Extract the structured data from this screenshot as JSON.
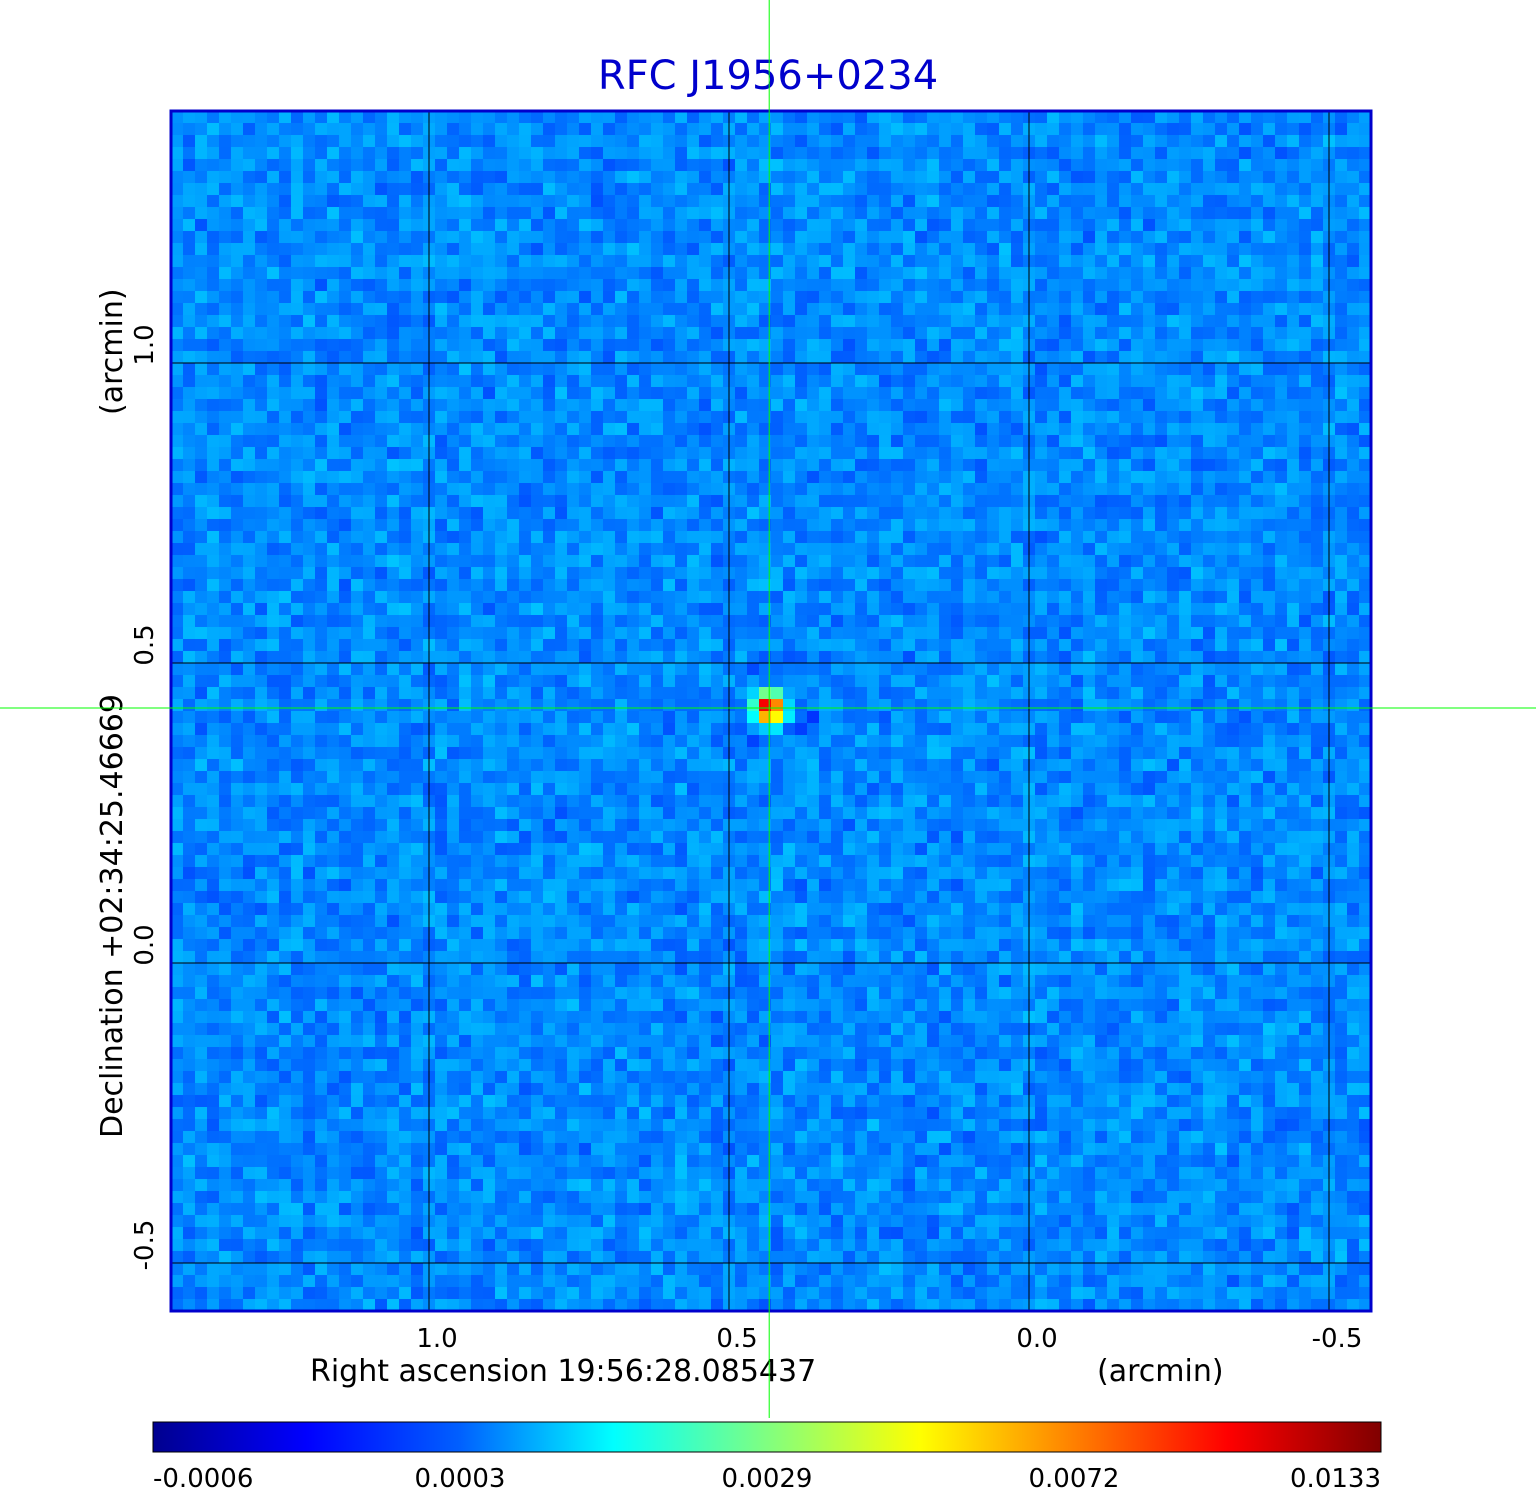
{
  "title": "RFC J1956+0234",
  "colors": {
    "title": "#0000cc",
    "frame": "#0000cc",
    "grid": "#000000",
    "crosshair": "#00ff00",
    "background": "#1a5cf0"
  },
  "colormap": "jet",
  "chart_data": {
    "type": "heatmap",
    "title": "RFC J1956+0234",
    "xlabel": "Right ascension  19:56:28.085437",
    "xunit": "(arcmin)",
    "ylabel": "Declination  +02:34:25.46669",
    "yunit": "(arcmin)",
    "xlim": [
      1.43,
      -0.57
    ],
    "ylim": [
      -0.58,
      1.42
    ],
    "xticks": [
      {
        "value": 1.0,
        "label": "1.0"
      },
      {
        "value": 0.5,
        "label": "0.5"
      },
      {
        "value": 0.0,
        "label": "0.0"
      },
      {
        "value": -0.5,
        "label": "-0.5"
      }
    ],
    "yticks": [
      {
        "value": -0.5,
        "label": "-0.5"
      },
      {
        "value": 0.0,
        "label": "0.0"
      },
      {
        "value": 0.5,
        "label": "0.5"
      },
      {
        "value": 1.0,
        "label": "1.0"
      }
    ],
    "grid": true,
    "crosshair": {
      "x": 0.433,
      "y": 0.425
    },
    "source_peak": {
      "x": 0.433,
      "y": 0.425,
      "value": 0.0133
    },
    "colorbar": {
      "min": -0.0006,
      "max": 0.0133,
      "tick_labels": [
        "-0.0006",
        "0.0003",
        "0.0029",
        "0.0072",
        "0.0133"
      ]
    }
  }
}
